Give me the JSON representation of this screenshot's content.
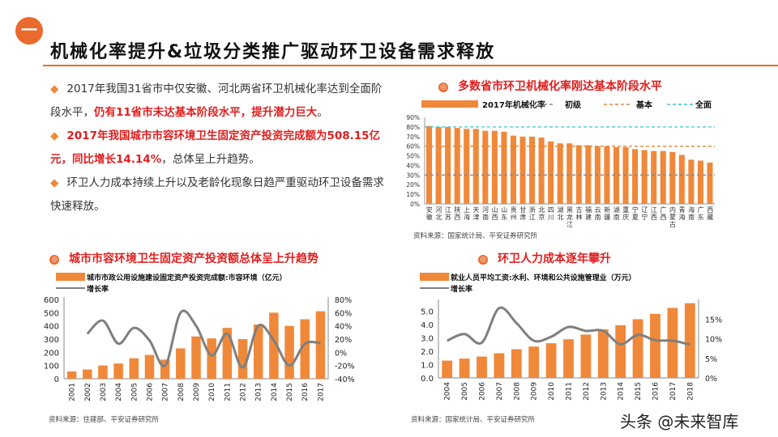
{
  "slide": {
    "badge": "一",
    "title": "机械化率提升&垃圾分类推广驱动环卫设备需求释放",
    "bullets": [
      {
        "plain1": "2017年我国31省市中仅安徽、河北两省环卫机械化率达到全面阶段水平，",
        "red": "仍有11省市未达基本阶段水平，提升潜力巨大",
        "plain2": "。"
      },
      {
        "plain1": "",
        "red": "2017年我国城市市容环境卫生固定资产投资完成额为508.15亿元，同比增长14.14%",
        "plain2": "，总体呈上升趋势。"
      },
      {
        "plain1": "环卫人力成本持续上升以及老龄化现象日趋严重驱动环卫设备需求快速释放。",
        "red": "",
        "plain2": ""
      }
    ],
    "watermark": "头条 @未来智库"
  },
  "colors": {
    "accent": "#ea6a2e",
    "bar": "#f0883a",
    "red": "#e01e1e",
    "line": "#7f7f7f",
    "basic": "#e0893a",
    "full": "#3ac4d8",
    "initial": "#888888"
  },
  "chart_data": [
    {
      "type": "bar",
      "title": "多数省市环卫机械化率刚达基本阶段水平",
      "legend": [
        "2017年机械化率",
        "初级",
        "基本",
        "全面"
      ],
      "categories": [
        "安徽",
        "河北",
        "江苏",
        "陕西",
        "上海",
        "天津",
        "河南",
        "山西",
        "山东",
        "贵州",
        "甘肃",
        "浙江",
        "北京",
        "四川",
        "湖北",
        "黑龙江",
        "吉林",
        "福建",
        "云南",
        "新疆",
        "湖南",
        "重庆",
        "宁夏",
        "辽宁",
        "江西",
        "广西",
        "内蒙古",
        "青海",
        "海南",
        "广东",
        "西藏"
      ],
      "values": [
        81,
        80,
        80,
        79,
        78,
        78,
        76,
        76,
        75,
        71,
        70,
        70,
        69,
        65,
        63,
        63,
        61,
        61,
        60,
        60,
        59,
        59,
        57,
        56,
        55,
        55,
        54,
        51,
        46,
        45,
        43
      ],
      "reference_lines": [
        {
          "name": "初级",
          "value": 30
        },
        {
          "name": "基本",
          "value": 60
        },
        {
          "name": "全面",
          "value": 80
        }
      ],
      "ylim": [
        0,
        90
      ],
      "yticks": [
        "0%",
        "10%",
        "20%",
        "30%",
        "40%",
        "50%",
        "60%",
        "70%",
        "80%",
        "90%"
      ],
      "legend_position": "top",
      "source": "资料来源：国家统计局、平安证券研究所"
    },
    {
      "type": "bar+line",
      "title": "城市市容环境卫生固定资产投资额总体呈上升趋势",
      "categories": [
        "2001",
        "2002",
        "2003",
        "2004",
        "2005",
        "2006",
        "2007",
        "2008",
        "2009",
        "2010",
        "2011",
        "2012",
        "2013",
        "2014",
        "2015",
        "2016",
        "2017"
      ],
      "series": [
        {
          "name": "城市市政公用设施建设固定资产投资完成额:市容环境（亿元）",
          "axis": "left",
          "values": [
            55,
            70,
            100,
            115,
            155,
            180,
            145,
            230,
            320,
            305,
            385,
            300,
            410,
            500,
            400,
            450,
            510
          ]
        },
        {
          "name": "增长率",
          "axis": "right",
          "values": [
            null,
            28,
            48,
            13,
            37,
            18,
            -20,
            60,
            40,
            -5,
            28,
            -23,
            40,
            18,
            -20,
            13,
            14
          ]
        }
      ],
      "ylim": [
        0,
        600
      ],
      "yticks": [
        "0",
        "100",
        "200",
        "300",
        "400",
        "500",
        "600"
      ],
      "y2lim": [
        -40,
        80
      ],
      "y2ticks": [
        "-40%",
        "-20%",
        "0%",
        "20%",
        "40%",
        "60%",
        "80%"
      ],
      "legend_position": "top",
      "source": "资料来源：住建部、平安证券研究所"
    },
    {
      "type": "bar+line",
      "title": "环卫人力成本逐年攀升",
      "categories": [
        "2004",
        "2005",
        "2006",
        "2007",
        "2008",
        "2009",
        "2010",
        "2011",
        "2012",
        "2013",
        "2014",
        "2015",
        "2016",
        "2017",
        "2018"
      ],
      "series": [
        {
          "name": "就业人员平均工资:水利、环境和公共设施管理业（万元）",
          "axis": "left",
          "values": [
            1.3,
            1.45,
            1.6,
            1.85,
            2.15,
            2.35,
            2.6,
            2.9,
            3.25,
            3.65,
            3.95,
            4.4,
            4.8,
            5.25,
            5.6
          ]
        },
        {
          "name": "增长率",
          "axis": "right",
          "values": [
            9.5,
            11.2,
            9,
            17.8,
            14,
            9.5,
            10.5,
            13,
            12,
            12,
            8.6,
            11,
            9.6,
            9.5,
            8.5
          ]
        }
      ],
      "ylim": [
        0,
        5.7
      ],
      "yticks": [
        "0.0",
        "1.0",
        "2.0",
        "3.0",
        "4.0",
        "5.0"
      ],
      "y2lim": [
        0,
        19.4
      ],
      "y2ticks": [
        "0%",
        "5%",
        "10%",
        "15%"
      ],
      "legend_position": "top",
      "source": "资料来源：国家统计局、平安证券研究所"
    }
  ]
}
